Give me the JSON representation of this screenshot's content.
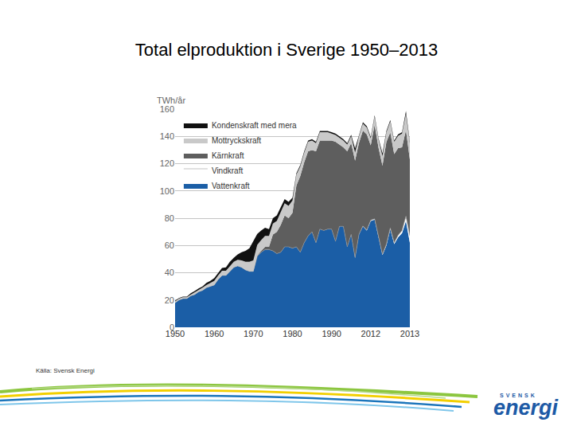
{
  "chart_data": {
    "type": "area",
    "title": "Total elproduktion i Sverige 1950–2013",
    "y_label": "TWh/år",
    "source": "Källa: Svensk Energi",
    "logo": [
      "SVENSK",
      "energi"
    ],
    "categories": [
      "1950",
      null,
      null,
      null,
      null,
      null,
      null,
      null,
      null,
      null,
      "1960",
      null,
      null,
      null,
      null,
      null,
      null,
      null,
      null,
      null,
      "1970",
      null,
      null,
      null,
      null,
      null,
      null,
      null,
      null,
      null,
      "1980",
      null,
      null,
      null,
      null,
      null,
      null,
      null,
      null,
      null,
      "1990",
      null,
      null,
      null,
      null,
      null,
      null,
      null,
      null,
      null,
      "2012",
      null,
      null,
      null,
      null,
      null,
      null,
      null,
      null,
      null,
      "2013"
    ],
    "series": [
      {
        "name": "Vattenkraft",
        "color": "#1b5ea6",
        "values": [
          18,
          20,
          21,
          21,
          23,
          24,
          26,
          27,
          29,
          30,
          31,
          35,
          38,
          38,
          41,
          44,
          45,
          44,
          42,
          41,
          41,
          52,
          55,
          57,
          57,
          56,
          54,
          55,
          59,
          59,
          58,
          59,
          55,
          62,
          67,
          70,
          62,
          72,
          71,
          72,
          72,
          63,
          74,
          74,
          59,
          68,
          51,
          68,
          74,
          71,
          78,
          79,
          66,
          53,
          60,
          72,
          61,
          66,
          69,
          78,
          62
        ]
      },
      {
        "name": "Vindkraft",
        "color": "#ffffff",
        "values": [
          0,
          0,
          0,
          0,
          0,
          0,
          0,
          0,
          0,
          0,
          0,
          0,
          0,
          0,
          0,
          0,
          0,
          0,
          0,
          0,
          0,
          0,
          0,
          0,
          0,
          0,
          0,
          0,
          0,
          0,
          0,
          0,
          0,
          0,
          0,
          0,
          0,
          0,
          0,
          0,
          0,
          0,
          0,
          0,
          0,
          0.1,
          0.2,
          0.2,
          0.3,
          0.4,
          0.5,
          0.5,
          0.6,
          0.6,
          0.9,
          0.9,
          1.0,
          1.4,
          2.0,
          3.5,
          5
        ]
      },
      {
        "name": "Kärnkraft",
        "color": "#5e5e5e",
        "values": [
          0,
          0,
          0,
          0,
          0,
          0,
          0,
          0,
          0,
          0,
          0,
          0,
          0,
          0,
          0,
          0,
          0,
          0,
          0,
          0,
          0,
          0.5,
          1,
          2,
          2,
          12,
          16,
          20,
          23,
          21,
          26,
          45,
          56,
          59,
          62,
          60,
          67,
          65,
          66,
          65,
          65,
          73,
          60,
          58,
          70,
          67,
          71,
          67,
          70,
          70,
          55,
          69,
          65,
          65,
          75,
          70,
          65,
          64,
          61,
          63,
          56
        ]
      },
      {
        "name": "Mottryckskraft",
        "color": "#c9c9c9",
        "values": [
          1,
          1,
          1,
          1,
          1,
          1.5,
          1.5,
          2,
          2,
          2.5,
          3,
          3,
          3.5,
          3.5,
          4,
          4,
          4.5,
          5,
          6,
          7,
          8,
          8,
          8,
          8,
          8,
          8,
          8,
          9,
          9,
          9,
          9,
          8,
          7,
          7,
          7,
          7,
          6,
          6,
          6,
          6,
          5,
          5,
          5,
          5,
          5,
          5,
          6,
          5,
          5,
          5,
          5,
          6,
          6,
          7,
          7,
          8,
          9,
          9,
          10,
          12,
          12
        ]
      },
      {
        "name": "Kondenskraft med mera",
        "color": "#111111",
        "values": [
          0.5,
          0.5,
          0.5,
          0.5,
          1,
          1,
          1,
          1,
          1.5,
          1.5,
          2,
          2,
          2,
          2.5,
          3,
          3,
          4,
          6,
          8,
          10,
          14,
          8,
          7,
          6,
          5,
          4,
          4,
          4,
          3,
          3,
          2,
          1,
          1,
          1,
          1,
          1,
          1,
          1,
          1,
          1,
          1,
          1,
          1,
          1,
          1,
          1,
          3,
          1,
          1,
          1,
          1,
          1,
          1,
          2,
          1,
          1,
          1,
          1,
          1,
          2,
          1
        ]
      }
    ],
    "ylim": [
      0,
      160
    ],
    "yticks": [
      0,
      20,
      40,
      60,
      80,
      100,
      120,
      140,
      160
    ],
    "stacked": true,
    "grid": true,
    "legend": "top left"
  }
}
